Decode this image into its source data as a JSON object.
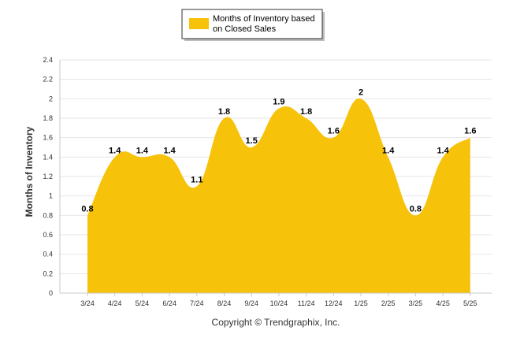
{
  "colors": {
    "fill": "#F7C20A",
    "grid": "#e6e6e6",
    "axis": "#c8c8c8"
  },
  "legend": {
    "line1": "Months of Inventory based",
    "line2": "on Closed Sales"
  },
  "copyright": "Copyright © Trendgraphix, Inc.",
  "chart_data": {
    "type": "area",
    "ylabel": "Months of Inventory",
    "xlabel": "",
    "ylim": [
      0,
      2.4
    ],
    "yticks": [
      "0",
      "0.2",
      "0.4",
      "0.6",
      "0.8",
      "1",
      "1.2",
      "1.4",
      "1.6",
      "1.8",
      "2",
      "2.2",
      "2.4"
    ],
    "categories": [
      "3/24",
      "4/24",
      "5/24",
      "6/24",
      "7/24",
      "8/24",
      "9/24",
      "10/24",
      "11/24",
      "12/24",
      "1/25",
      "2/25",
      "3/25",
      "4/25",
      "5/25"
    ],
    "series": [
      {
        "name": "Months of Inventory based on Closed Sales",
        "values": [
          0.8,
          1.4,
          1.4,
          1.4,
          1.1,
          1.8,
          1.5,
          1.9,
          1.8,
          1.6,
          2,
          1.4,
          0.8,
          1.4,
          1.6
        ],
        "labels": [
          "0.8",
          "1.4",
          "1.4",
          "1.4",
          "1.1",
          "1.8",
          "1.5",
          "1.9",
          "1.8",
          "1.6",
          "2",
          "1.4",
          "0.8",
          "1.4",
          "1.6"
        ]
      }
    ],
    "grid": true,
    "legend_position": "top-center"
  }
}
